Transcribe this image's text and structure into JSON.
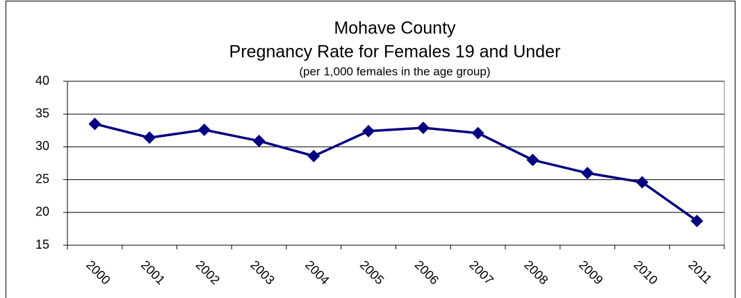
{
  "chart_data": {
    "type": "line",
    "title": [
      "Mohave County",
      "Pregnancy Rate for Females 19 and Under"
    ],
    "subtitle": "(per 1,000 females in the age group)",
    "categories": [
      "2000",
      "2001",
      "2002",
      "2003",
      "2004",
      "2005",
      "2006",
      "2007",
      "2008",
      "2009",
      "2010",
      "2011"
    ],
    "series": [
      {
        "name": "Pregnancy Rate",
        "color": "#000080",
        "values": [
          33.5,
          31.4,
          32.6,
          30.9,
          28.6,
          32.4,
          32.9,
          32.1,
          28.0,
          26.0,
          24.6,
          18.7
        ]
      }
    ],
    "ylim": [
      15,
      40
    ],
    "yticks": [
      15,
      20,
      25,
      30,
      35,
      40
    ],
    "grid": true
  }
}
